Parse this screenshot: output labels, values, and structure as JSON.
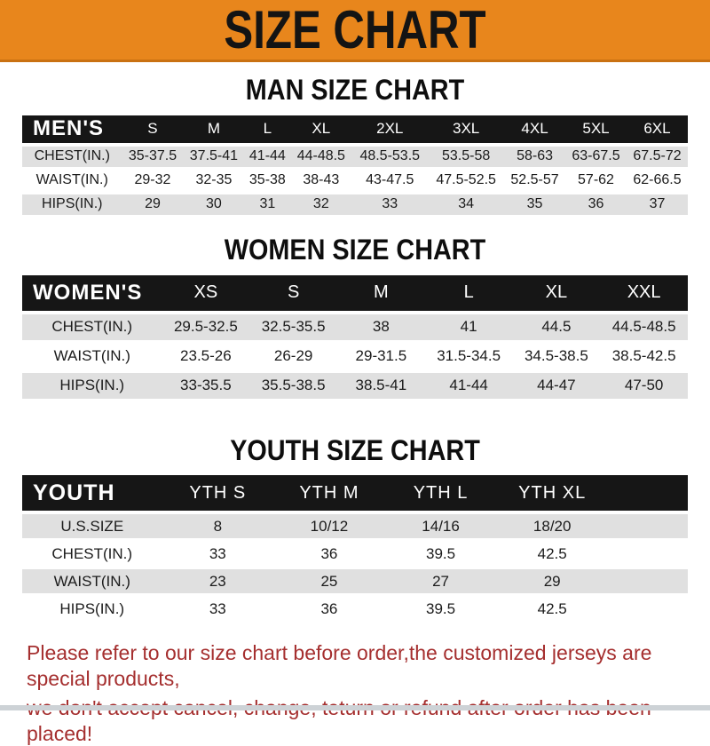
{
  "banner": {
    "title": "SIZE CHART"
  },
  "colors": {
    "banner_bg": "#E8861C",
    "banner_edge": "#C97112",
    "bar_black": "#161616",
    "row_gray": "#E0E0E0",
    "note_red": "#A52F2F",
    "bottom_strip": "#CDD2D6"
  },
  "sections": [
    {
      "heading": "MAN SIZE CHART",
      "table": {
        "header_label": "MEN'S",
        "columns": [
          "S",
          "M",
          "L",
          "XL",
          "2XL",
          "3XL",
          "4XL",
          "5XL",
          "6XL"
        ],
        "rows": [
          {
            "label": "CHEST(IN.)",
            "values": [
              "35-37.5",
              "37.5-41",
              "41-44",
              "44-48.5",
              "48.5-53.5",
              "53.5-58",
              "58-63",
              "63-67.5",
              "67.5-72"
            ]
          },
          {
            "label": "WAIST(IN.)",
            "values": [
              "29-32",
              "32-35",
              "35-38",
              "38-43",
              "43-47.5",
              "47.5-52.5",
              "52.5-57",
              "57-62",
              "62-66.5"
            ]
          },
          {
            "label": "HIPS(IN.)",
            "values": [
              "29",
              "30",
              "31",
              "32",
              "33",
              "34",
              "35",
              "36",
              "37"
            ]
          }
        ]
      }
    },
    {
      "heading": "WOMEN SIZE CHART",
      "table": {
        "header_label": "WOMEN'S",
        "columns": [
          "XS",
          "S",
          "M",
          "L",
          "XL",
          "XXL"
        ],
        "rows": [
          {
            "label": "CHEST(IN.)",
            "values": [
              "29.5-32.5",
              "32.5-35.5",
              "38",
              "41",
              "44.5",
              "44.5-48.5"
            ]
          },
          {
            "label": "WAIST(IN.)",
            "values": [
              "23.5-26",
              "26-29",
              "29-31.5",
              "31.5-34.5",
              "34.5-38.5",
              "38.5-42.5"
            ]
          },
          {
            "label": "HIPS(IN.)",
            "values": [
              "33-35.5",
              "35.5-38.5",
              "38.5-41",
              "41-44",
              "44-47",
              "47-50"
            ]
          }
        ]
      }
    },
    {
      "heading": "YOUTH SIZE CHART",
      "table": {
        "header_label": "YOUTH",
        "columns": [
          "YTH S",
          "YTH M",
          "YTH L",
          "YTH XL",
          ""
        ],
        "rows": [
          {
            "label": "U.S.SIZE",
            "values": [
              "8",
              "10/12",
              "14/16",
              "18/20",
              ""
            ]
          },
          {
            "label": "CHEST(IN.)",
            "values": [
              "33",
              "36",
              "39.5",
              "42.5",
              ""
            ]
          },
          {
            "label": "WAIST(IN.)",
            "values": [
              "23",
              "25",
              "27",
              "29",
              ""
            ]
          },
          {
            "label": "HIPS(IN.)",
            "values": [
              "33",
              "36",
              "39.5",
              "42.5",
              ""
            ]
          }
        ]
      }
    }
  ],
  "footer": {
    "line1": "Please refer to our size chart before order,the customized jerseys are special products,",
    "line2": "we don't accept cancel, change, teturn or refund after order has been placed!"
  }
}
